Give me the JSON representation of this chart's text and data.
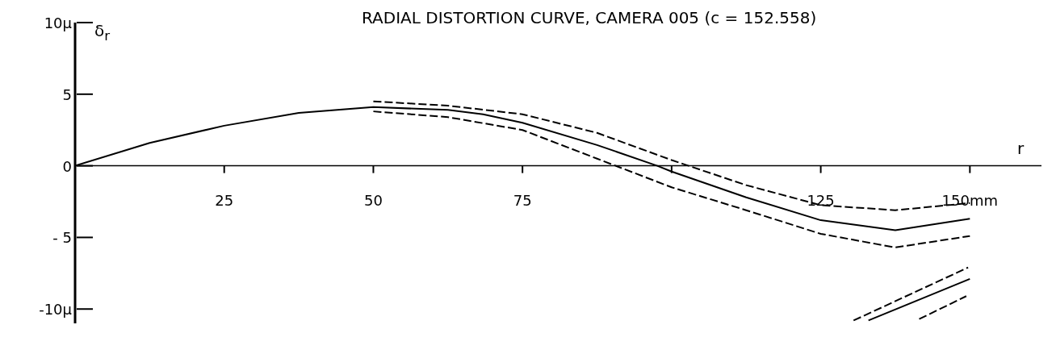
{
  "chart_data": {
    "type": "line",
    "title": "RADIAL DISTORTION CURVE, CAMERA 005 (c = 152.558)",
    "xlabel": "r",
    "ylabel": "δ$_{r}$",
    "series": [
      {
        "color": "#000000",
        "line_style": "solid",
        "x": [
          0,
          12.5,
          25,
          37.5,
          50,
          62.5,
          68.4,
          75,
          87.5,
          97.6,
          100,
          112.5,
          125,
          137.5,
          150
        ],
        "values": [
          0,
          1.6,
          2.8,
          3.7,
          4.1,
          3.9,
          3.6,
          3.0,
          1.45,
          0,
          -0.4,
          -2.2,
          -3.8,
          -4.5,
          -3.7
        ]
      },
      {
        "color": "#000000",
        "line_style": "dashed",
        "x": [
          50,
          62.5,
          75,
          87.5,
          100,
          112.5,
          125,
          137.5,
          150
        ],
        "values": [
          4.5,
          4.2,
          3.6,
          2.3,
          0.4,
          -1.35,
          -2.75,
          -3.1,
          -2.6
        ]
      },
      {
        "color": "#000000",
        "line_style": "dashed",
        "x": [
          50,
          62.5,
          75,
          87.5,
          100,
          112.5,
          125,
          137.5,
          150
        ],
        "values": [
          3.8,
          3.4,
          2.5,
          0.5,
          -1.5,
          -3.1,
          -4.75,
          -5.7,
          -4.9
        ]
      },
      {
        "color": "#000000",
        "line_style": "dashed",
        "x": [
          130.5,
          149.7
        ],
        "values": [
          -10.8,
          -7.1
        ]
      },
      {
        "color": "#000000",
        "line_style": "solid",
        "x": [
          133,
          150
        ],
        "values": [
          -10.8,
          -7.9
        ]
      },
      {
        "color": "#000000",
        "line_style": "dashed",
        "x": [
          141.5,
          149.4
        ],
        "values": [
          -10.7,
          -9.1
        ]
      }
    ],
    "xlim": [
      0,
      162
    ],
    "xticks": [
      25,
      50,
      75,
      {
        "value": 100,
        "label": null
      },
      125,
      {
        "value": 150,
        "label": "150mm"
      }
    ],
    "ylim": [
      -11,
      10
    ],
    "yticks": [
      {
        "value": 10,
        "label": "10μ"
      },
      5,
      0,
      {
        "value": -5,
        "label": "- 5"
      },
      {
        "value": -10,
        "label": "-10μ"
      }
    ],
    "grid": false,
    "legend": false,
    "marker": "none"
  }
}
